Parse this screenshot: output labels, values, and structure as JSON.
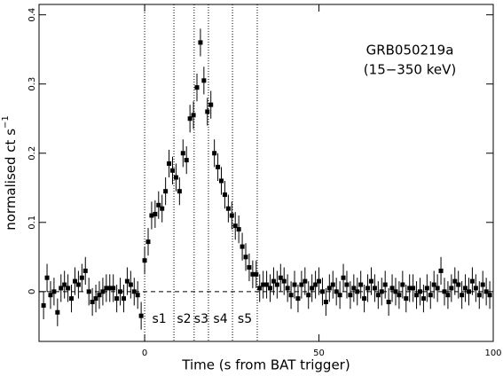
{
  "chart_data": {
    "type": "scatter",
    "title": "GRB050219a",
    "subtitle": "(15−350 keV)",
    "xlabel": "Time (s from BAT trigger)",
    "ylabel": "normalised ct s",
    "ylabel_superscript": "−1",
    "xlim": [
      -30.3,
      100
    ],
    "ylim": [
      -0.072,
      0.415
    ],
    "xticks": [
      0,
      50,
      100
    ],
    "yticks": [
      0,
      0.1,
      0.2,
      0.3,
      0.4
    ],
    "reference_line": 0,
    "vlines": [
      0,
      8.4,
      14.2,
      18.3,
      25.2,
      32.3
    ],
    "segment_labels": [
      "s1",
      "s2",
      "s3",
      "s4",
      "s5"
    ],
    "series": [
      {
        "color": "#000000",
        "error": 0.02,
        "xerror": 0.5,
        "x": [
          -29,
          -28,
          -27,
          -26,
          -25,
          -24,
          -23,
          -22,
          -21,
          -20,
          -19,
          -18,
          -17,
          -16,
          -15,
          -14,
          -13,
          -12,
          -11,
          -10,
          -9,
          -8,
          -7,
          -6,
          -5,
          -4,
          -3,
          -2,
          -1,
          0,
          1,
          2,
          3,
          4,
          5,
          6,
          7,
          8,
          9,
          10,
          11,
          12,
          13,
          14,
          15,
          16,
          17,
          18,
          19,
          20,
          21,
          22,
          23,
          24,
          25,
          26,
          27,
          28,
          29,
          30,
          31,
          32,
          33,
          34,
          35,
          36,
          37,
          38,
          39,
          40,
          41,
          42,
          43,
          44,
          45,
          46,
          47,
          48,
          49,
          50,
          51,
          52,
          53,
          54,
          55,
          56,
          57,
          58,
          59,
          60,
          61,
          62,
          63,
          64,
          65,
          66,
          67,
          68,
          69,
          70,
          71,
          72,
          73,
          74,
          75,
          76,
          77,
          78,
          79,
          80,
          81,
          82,
          83,
          84,
          85,
          86,
          87,
          88,
          89,
          90,
          91,
          92,
          93,
          94,
          95,
          96,
          97,
          98,
          99
        ],
        "values": [
          -0.02,
          0.02,
          -0.005,
          0,
          -0.03,
          0.005,
          0.01,
          0.005,
          -0.01,
          0.015,
          0.01,
          0.02,
          0.03,
          0,
          -0.015,
          -0.01,
          -0.005,
          0,
          0.005,
          0.005,
          0.005,
          -0.01,
          0,
          -0.01,
          0.015,
          0.01,
          0,
          -0.005,
          -0.035,
          0.045,
          0.072,
          0.11,
          0.112,
          0.125,
          0.12,
          0.145,
          0.185,
          0.175,
          0.165,
          0.145,
          0.2,
          0.19,
          0.25,
          0.255,
          0.295,
          0.36,
          0.305,
          0.26,
          0.27,
          0.2,
          0.18,
          0.16,
          0.14,
          0.12,
          0.11,
          0.095,
          0.09,
          0.065,
          0.05,
          0.035,
          0.025,
          0.025,
          0.005,
          0.01,
          0.01,
          0.005,
          0.015,
          0.01,
          0.02,
          0.015,
          0.005,
          -0.005,
          0.01,
          -0.01,
          0.01,
          0.015,
          -0.005,
          0.005,
          0.01,
          0.015,
          0,
          -0.015,
          0.005,
          0.01,
          0,
          -0.005,
          0.02,
          0.01,
          -0.005,
          0.005,
          0,
          0.01,
          -0.01,
          0.005,
          0.015,
          0.005,
          -0.005,
          0,
          0.01,
          -0.015,
          0.005,
          0,
          -0.005,
          0.01,
          -0.01,
          0.005,
          0.005,
          -0.005,
          0,
          -0.01,
          0.005,
          -0.005,
          0.01,
          0.005,
          0.03,
          0,
          -0.005,
          0.005,
          0.015,
          0.01,
          -0.005,
          0.005,
          0,
          0.015,
          0.005,
          -0.005,
          0.01,
          0,
          -0.005
        ]
      }
    ]
  }
}
